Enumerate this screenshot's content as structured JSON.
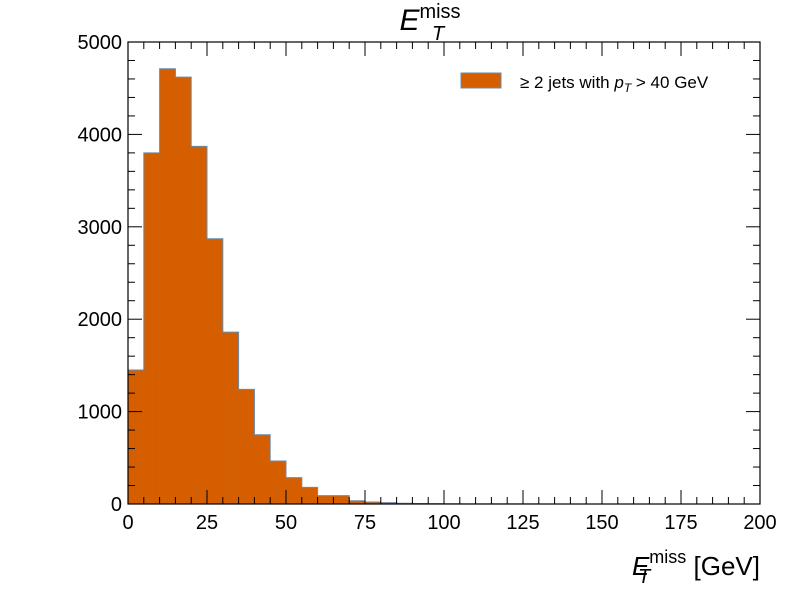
{
  "chart_data": {
    "type": "bar",
    "title": {
      "base": "E",
      "sub": "T",
      "sup": "miss"
    },
    "xlabel": {
      "base": "E",
      "sub": "T",
      "sup": "miss",
      "unit": " [GeV]"
    },
    "ylabel": "",
    "xlim": [
      0,
      200
    ],
    "ylim": [
      0,
      5000
    ],
    "x_ticks": [
      0,
      25,
      50,
      75,
      100,
      125,
      150,
      175,
      200
    ],
    "y_ticks": [
      0,
      1000,
      2000,
      3000,
      4000,
      5000
    ],
    "x_tick_labels": [
      "0",
      "25",
      "50",
      "75",
      "100",
      "125",
      "150",
      "175",
      "200"
    ],
    "y_tick_labels": [
      "0",
      "1000",
      "2000",
      "3000",
      "4000",
      "5000"
    ],
    "grid": false,
    "legend_position": "top-right",
    "bin_width": 5,
    "bin_edges_start": 0,
    "series": [
      {
        "name": "≥ 2 jets with p_T > 40 GeV",
        "color": "#d55e00",
        "edge_color": "#6a8aa8",
        "values": [
          1450,
          3800,
          4710,
          4620,
          3870,
          2870,
          1860,
          1240,
          750,
          465,
          285,
          180,
          90,
          90,
          35,
          22,
          15,
          8,
          6,
          4,
          3,
          2,
          2,
          1,
          1,
          1,
          0,
          0,
          0,
          0,
          0,
          0,
          0,
          0,
          0,
          0,
          0,
          0,
          0,
          0
        ]
      }
    ],
    "legend": {
      "label_prefix": "≥ 2 jets with ",
      "label_var": "p",
      "label_var_sub": "T",
      "label_suffix": " > 40 GeV"
    }
  }
}
